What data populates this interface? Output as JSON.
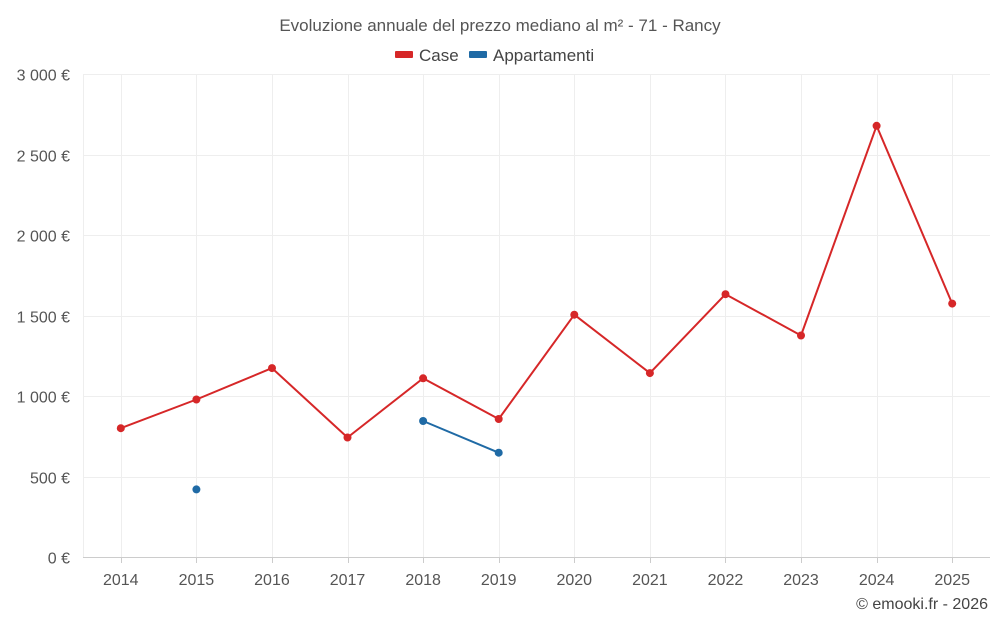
{
  "chart_data": {
    "type": "line",
    "title": "Evoluzione annuale del prezzo mediano al m² - 71 - Rancy",
    "xlabel": "",
    "ylabel": "",
    "categories": [
      "2014",
      "2015",
      "2016",
      "2017",
      "2018",
      "2019",
      "2020",
      "2021",
      "2022",
      "2023",
      "2024",
      "2025"
    ],
    "ylim": [
      0,
      3000
    ],
    "yticks": [
      0,
      500,
      1000,
      1500,
      2000,
      2500,
      3000
    ],
    "ytick_labels": [
      "0 €",
      "500 €",
      "1 000 €",
      "1 500 €",
      "2 000 €",
      "2 500 €",
      "3 000 €"
    ],
    "grid": true,
    "legend_position": "top-center",
    "series": [
      {
        "name": "Case",
        "color": "#d62728",
        "values": [
          800,
          978,
          1173,
          742,
          1110,
          857,
          1505,
          1142,
          1632,
          1376,
          2678,
          1574
        ]
      },
      {
        "name": "Appartamenti",
        "color": "#1f6aa5",
        "values": [
          null,
          420,
          null,
          null,
          845,
          648,
          null,
          null,
          null,
          null,
          null,
          null
        ]
      }
    ],
    "credit": "© emooki.fr - 2026"
  }
}
